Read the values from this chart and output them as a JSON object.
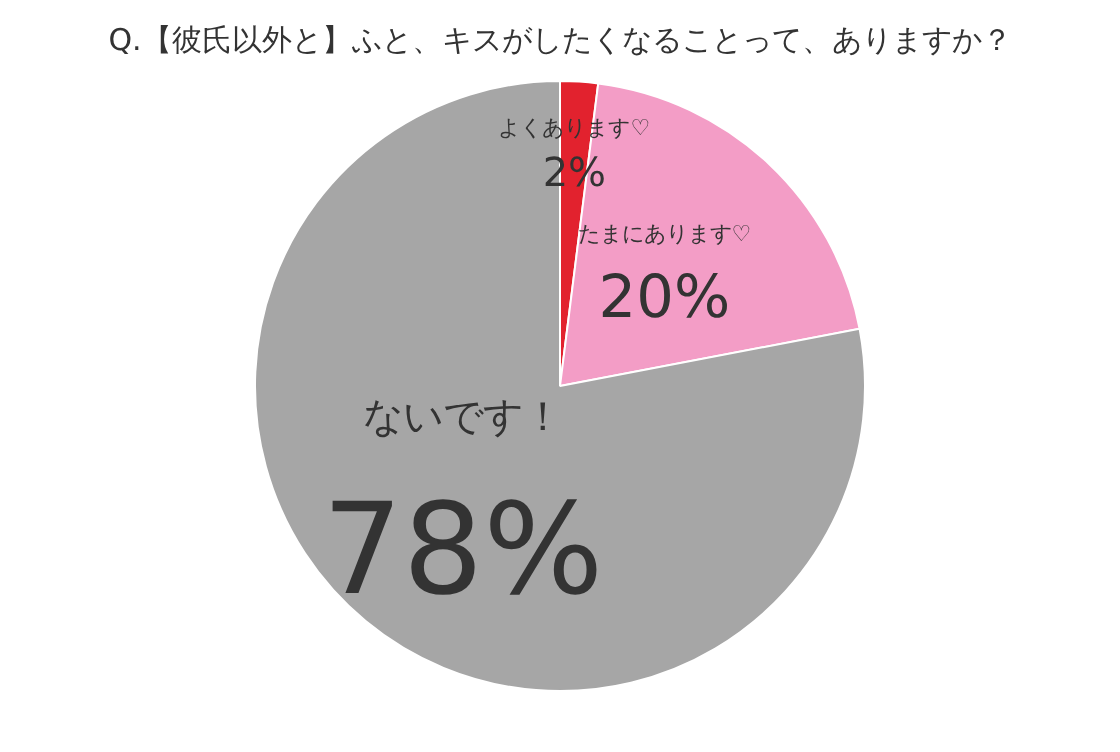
{
  "chart_data": {
    "type": "pie",
    "title": "Q.【彼氏以外と】ふと、キスがしたくなることって、ありますか？",
    "categories": [
      "よくあります♡",
      "たまにあります♡",
      "ないです！"
    ],
    "values": [
      2,
      20,
      78
    ],
    "colors": [
      "#e2222e",
      "#f39dc6",
      "#a6a6a6"
    ],
    "value_labels": [
      "2%",
      "20%",
      "78%"
    ],
    "legend": false
  }
}
